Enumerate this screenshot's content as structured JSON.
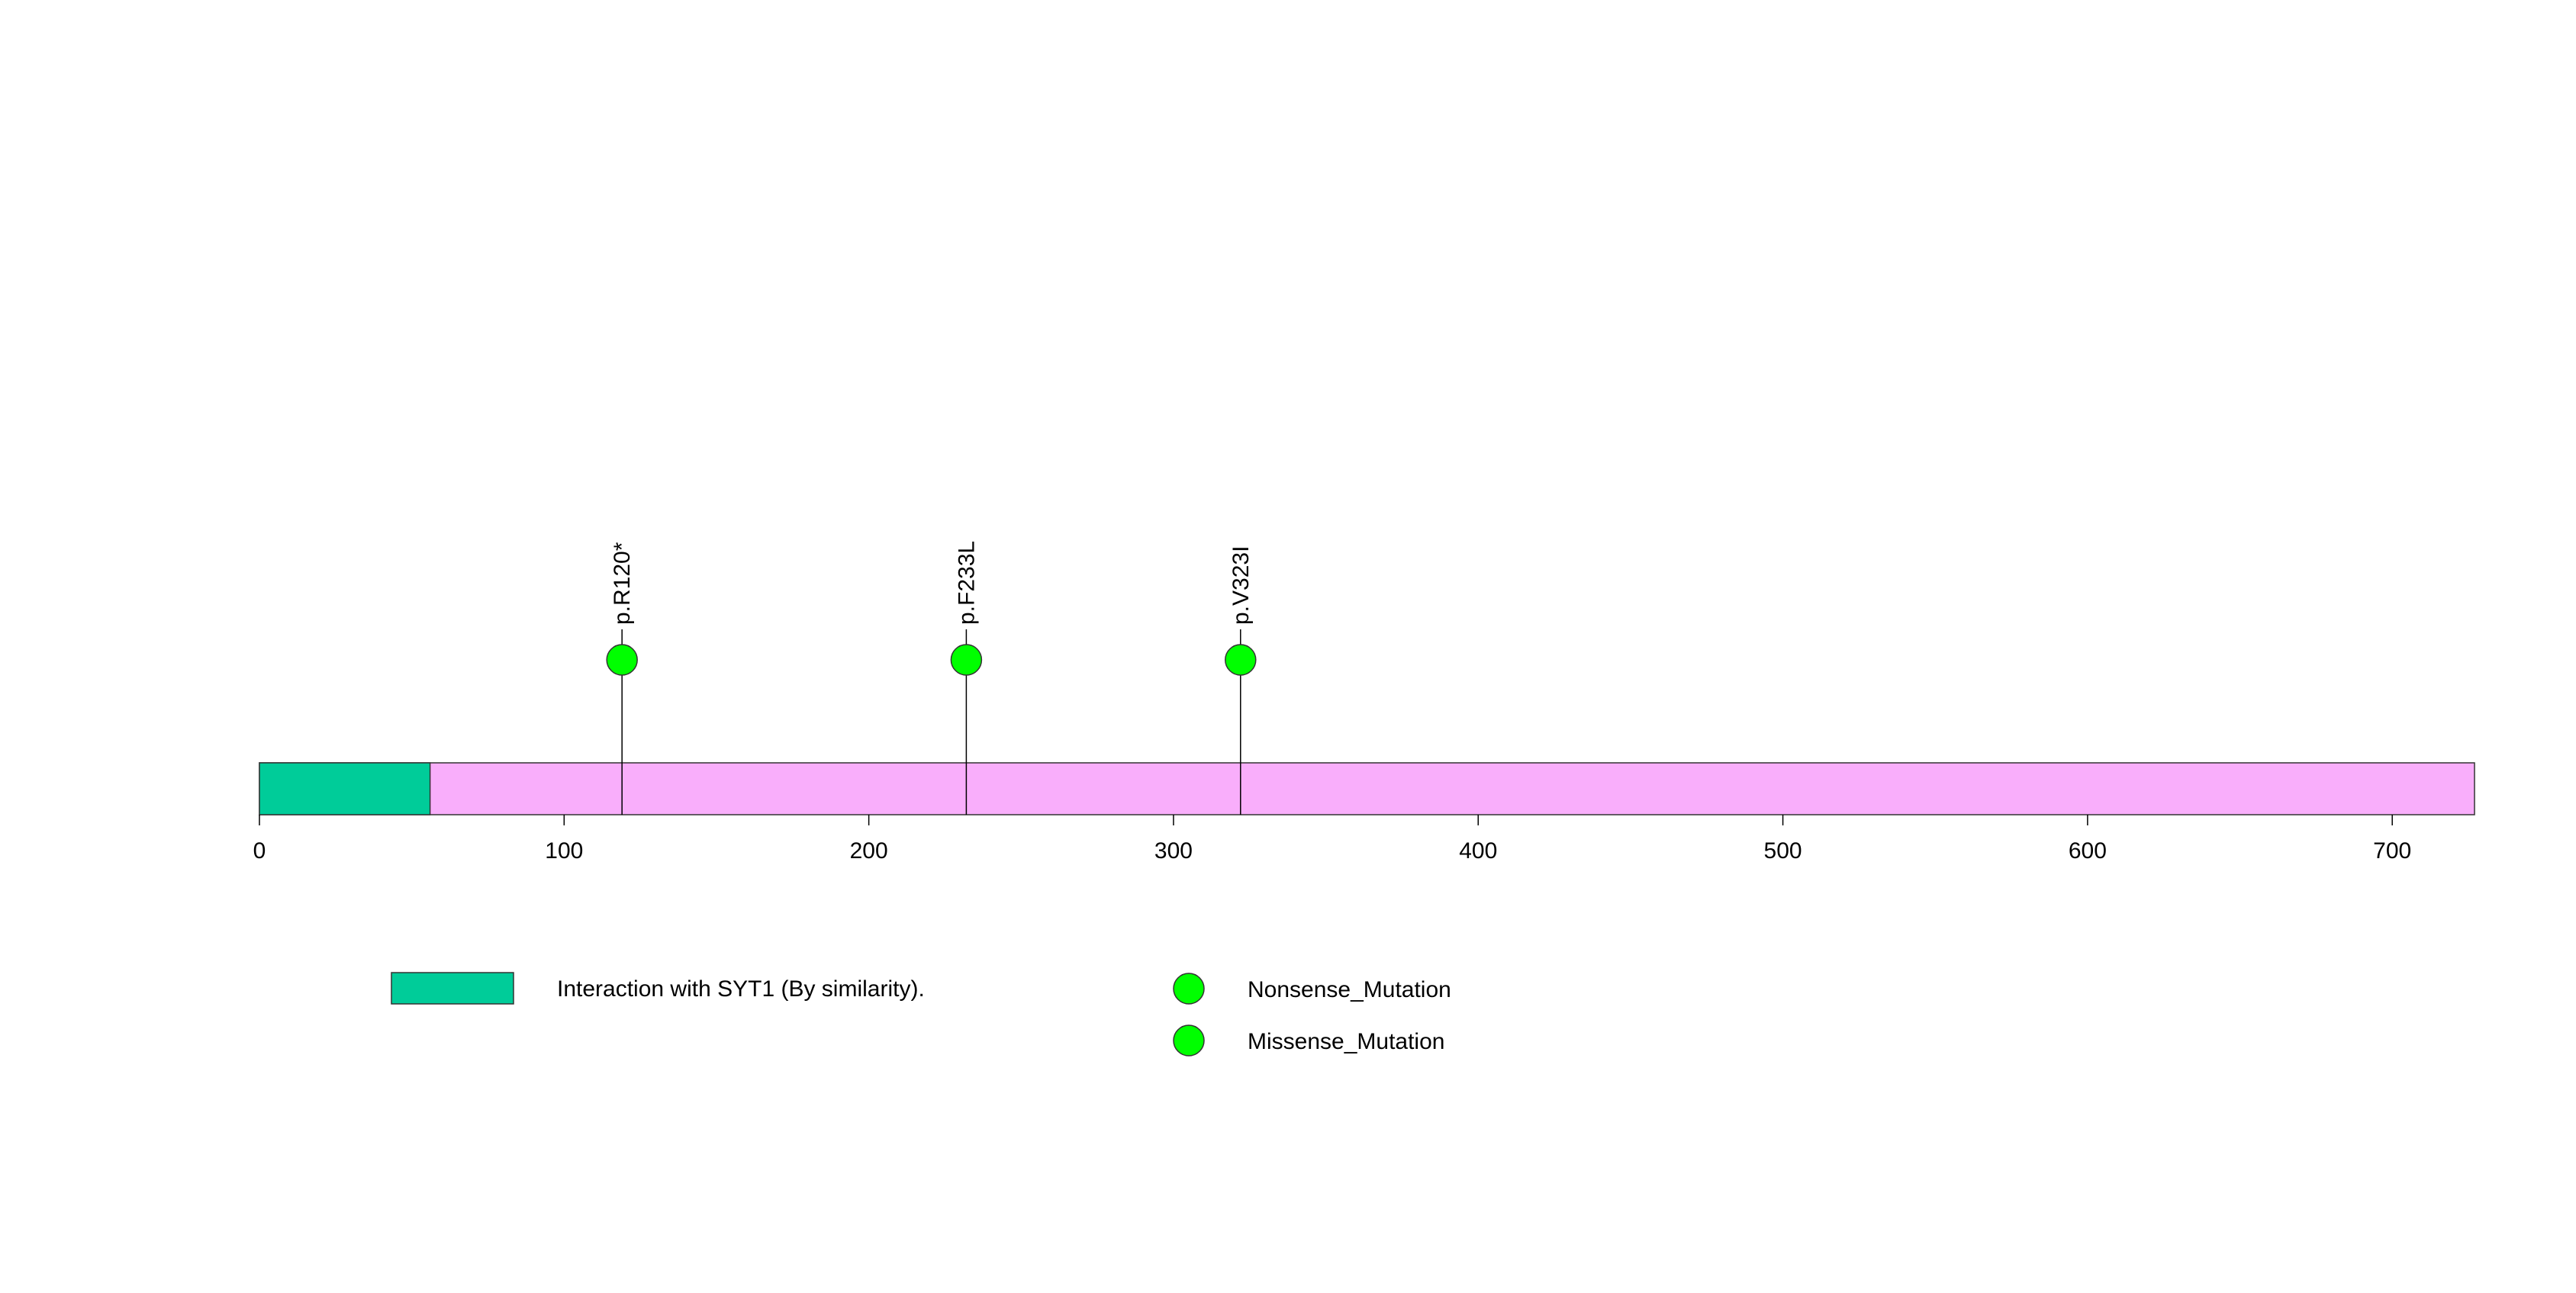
{
  "chart_data": {
    "type": "lollipop",
    "protein_length": 727,
    "x_range": [
      0,
      727
    ],
    "ticks": [
      0,
      100,
      200,
      300,
      400,
      500,
      600,
      700
    ],
    "tick_labels": [
      "0",
      "100",
      "200",
      "300",
      "400",
      "500",
      "600",
      "700"
    ],
    "protein_color": "#f9aefb",
    "domains": [
      {
        "label": "Interaction with SYT1 (By similarity).",
        "start": 0,
        "end": 56,
        "color": "#00cc99"
      }
    ],
    "mutations": [
      {
        "label": "p.R120*",
        "position": 119,
        "type": "Nonsense_Mutation",
        "count": 1,
        "color": "#00ff00"
      },
      {
        "label": "p.F233L",
        "position": 232,
        "type": "Missense_Mutation",
        "count": 1,
        "color": "#00ff00"
      },
      {
        "label": "p.V323I",
        "position": 322,
        "type": "Missense_Mutation",
        "count": 1,
        "color": "#00ff00"
      }
    ],
    "legend": {
      "domains": [
        {
          "label": "Interaction with SYT1 (By similarity).",
          "color": "#00cc99"
        }
      ],
      "mutation_types": [
        {
          "label": "Nonsense_Mutation",
          "color": "#00ff00"
        },
        {
          "label": "Missense_Mutation",
          "color": "#00ff00"
        }
      ]
    }
  }
}
